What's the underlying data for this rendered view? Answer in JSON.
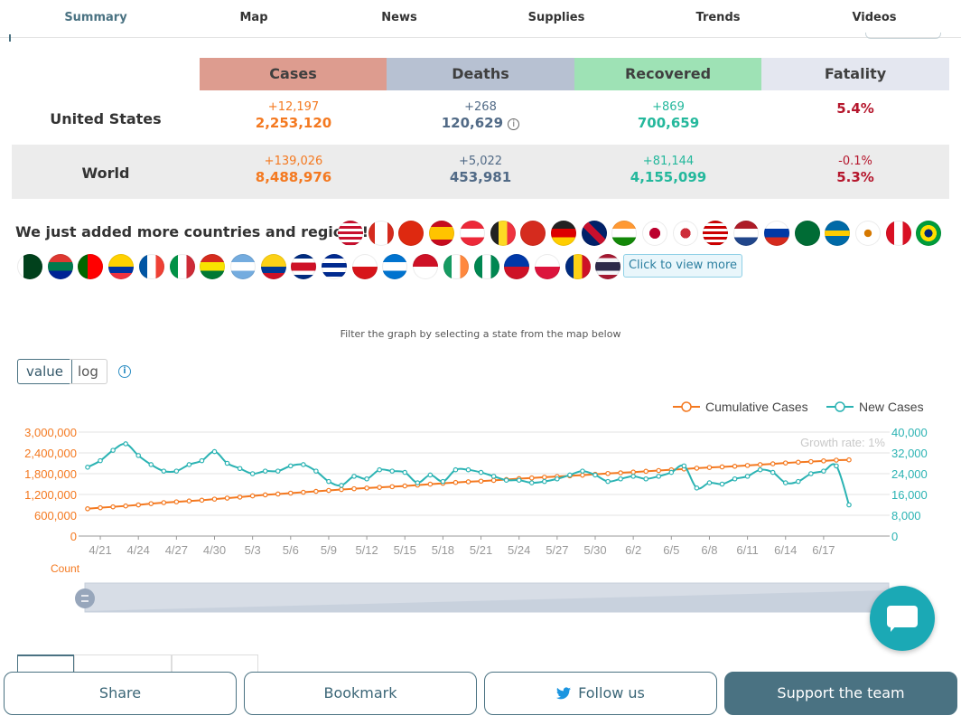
{
  "nav": {
    "tabs": [
      "Summary",
      "Map",
      "News",
      "Supplies",
      "Trends",
      "Videos"
    ],
    "active": "Summary"
  },
  "stats": {
    "headers": [
      "Cases",
      "Deaths",
      "Recovered",
      "Fatality"
    ],
    "header_colors": [
      "#dd9c8f",
      "#b7c1d2",
      "#9ee2b5",
      "#e4e7f0"
    ],
    "rows": [
      {
        "label": "United States",
        "cases_delta": "+12,197",
        "cases": "2,253,120",
        "deaths_delta": "+268",
        "deaths": "120,629",
        "recovered_delta": "+869",
        "recovered": "700,659",
        "fatality_delta": "",
        "fatality": "5.4%"
      },
      {
        "label": "World",
        "cases_delta": "+139,026",
        "cases": "8,488,976",
        "deaths_delta": "+5,022",
        "deaths": "453,981",
        "recovered_delta": "+81,144",
        "recovered": "4,155,099",
        "fatality_delta": "-0.1%",
        "fatality": "5.3%"
      }
    ]
  },
  "regions": {
    "heading": "We just added more countries and regions!",
    "view_more": "Click to view more",
    "flags_row1": [
      "us",
      "ca",
      "cn",
      "es",
      "at",
      "be",
      "ch",
      "de",
      "gb",
      "in",
      "jp",
      "kr",
      "my",
      "nl",
      "ru",
      "sa",
      "se",
      "cy",
      "pe",
      "br"
    ],
    "flags_row2": [
      "pk",
      "za",
      "pt",
      "ec",
      "fr",
      "it",
      "bo",
      "ar",
      "co",
      "cr",
      "cu",
      "cz",
      "hn",
      "id",
      "ie",
      "ng",
      "ph",
      "pl",
      "ro",
      "th"
    ]
  },
  "graph": {
    "filter_note": "Filter the graph by selecting a state from the map below",
    "toggle_value": "value",
    "toggle_log": "log",
    "info": "i",
    "growth_rate": "Growth rate: 1%",
    "zoom_label": "Count"
  },
  "chart_data": {
    "type": "line",
    "x_labels": [
      "4/21",
      "4/24",
      "4/27",
      "4/30",
      "5/3",
      "5/6",
      "5/9",
      "5/12",
      "5/15",
      "5/18",
      "5/21",
      "5/24",
      "5/27",
      "5/30",
      "6/2",
      "6/5",
      "6/8",
      "6/11",
      "6/14",
      "6/17"
    ],
    "x_start": "4/20",
    "x_end": "6/19",
    "series": [
      {
        "name": "Cumulative Cases",
        "axis": "left",
        "color": "#f47920",
        "values": [
          788000,
          817000,
          843000,
          869000,
          899000,
          935000,
          965000,
          988000,
          1012000,
          1035000,
          1066000,
          1095000,
          1124000,
          1159000,
          1189000,
          1214000,
          1239000,
          1264000,
          1290000,
          1317000,
          1343000,
          1366000,
          1386000,
          1405000,
          1425000,
          1446000,
          1471000,
          1498000,
          1523000,
          1547000,
          1567000,
          1585000,
          1607000,
          1631000,
          1657000,
          1677000,
          1699000,
          1718000,
          1738000,
          1757000,
          1784000,
          1806000,
          1825000,
          1846000,
          1869000,
          1891000,
          1913000,
          1935000,
          1959000,
          1979000,
          1996000,
          2014000,
          2038000,
          2062000,
          2085000,
          2109000,
          2131000,
          2148000,
          2169000,
          2191000,
          2199000
        ]
      },
      {
        "name": "New Cases",
        "axis": "right",
        "color": "#2bb3b3",
        "values": [
          26500,
          29000,
          33000,
          35500,
          31000,
          27500,
          25000,
          25000,
          27500,
          29000,
          32500,
          28000,
          26000,
          24000,
          25000,
          25000,
          27000,
          27500,
          25000,
          21000,
          19500,
          23000,
          22000,
          25500,
          25000,
          24500,
          20500,
          23500,
          21000,
          25500,
          25500,
          24500,
          23000,
          21500,
          21500,
          20500,
          21000,
          22000,
          23500,
          25000,
          23500,
          21000,
          22000,
          23000,
          22000,
          23000,
          24500,
          27000,
          18500,
          20500,
          20000,
          22000,
          23000,
          25500,
          24500,
          20500,
          21000,
          24000,
          25000,
          27000,
          12000
        ]
      }
    ],
    "ylim_left": [
      0,
      3000000
    ],
    "yticks_left": [
      "0",
      "600,000",
      "1,200,000",
      "1,800,000",
      "2,400,000",
      "3,000,000"
    ],
    "ylim_right": [
      0,
      40000
    ],
    "yticks_right": [
      "0",
      "8,000",
      "16,000",
      "24,000",
      "32,000",
      "40,000"
    ],
    "grid": true,
    "legend_position": "top-right"
  },
  "share_bar": {
    "share": "Share",
    "bookmark": "Bookmark",
    "follow": "Follow us",
    "support": "Support the team"
  }
}
